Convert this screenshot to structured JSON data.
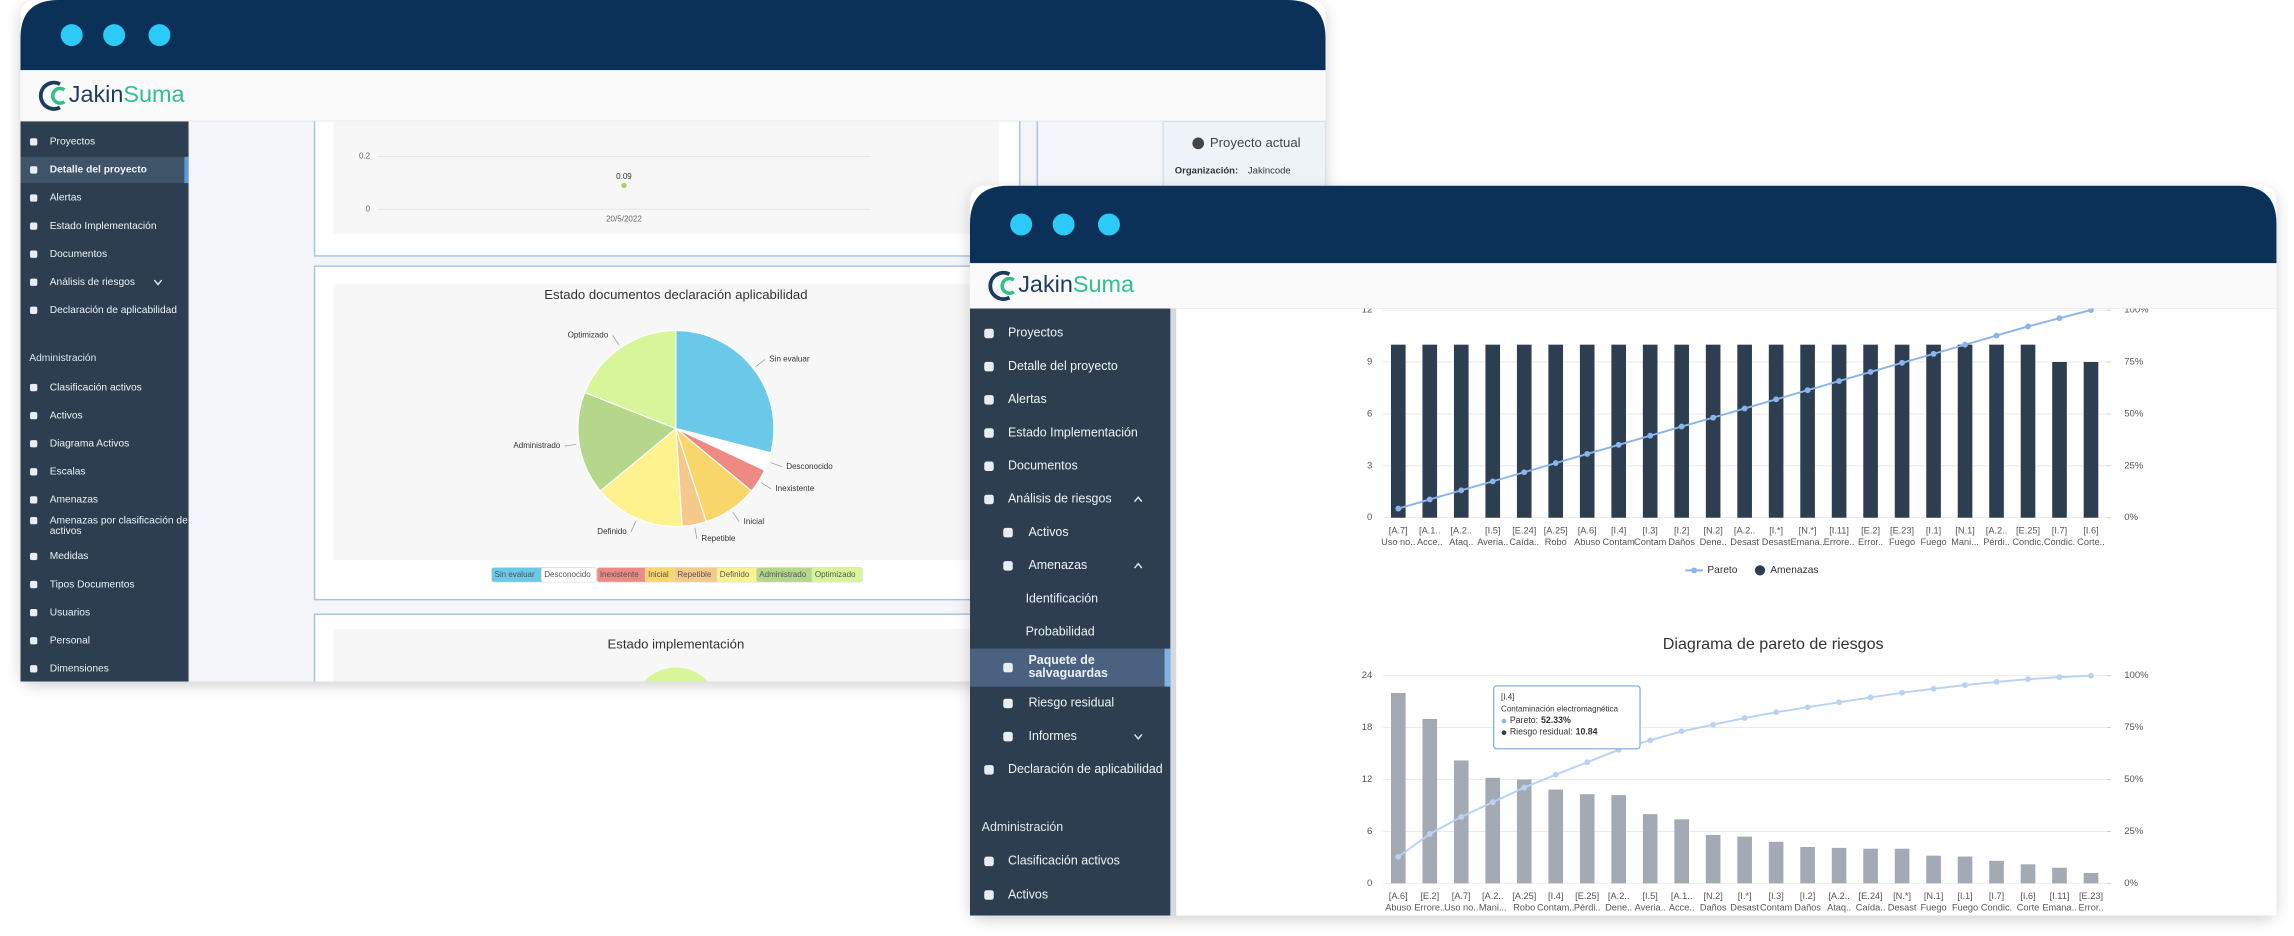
{
  "left_window": {
    "logo": {
      "part1": "Jakin",
      "part2": "Suma"
    },
    "sidebar": {
      "items": [
        {
          "label": "Proyectos"
        },
        {
          "label": "Detalle del proyecto",
          "active": true
        },
        {
          "label": "Alertas"
        },
        {
          "label": "Estado Implementación"
        },
        {
          "label": "Documentos"
        },
        {
          "label": "Análisis de riesgos",
          "caret": "down"
        },
        {
          "label": "Declaración de aplicabilidad"
        }
      ],
      "section": "Administración",
      "admin_items": [
        {
          "label": "Clasificación activos"
        },
        {
          "label": "Activos"
        },
        {
          "label": "Diagrama Activos"
        },
        {
          "label": "Escalas"
        },
        {
          "label": "Amenazas"
        },
        {
          "label": "Amenazas por clasificación de activos",
          "wrap": true
        },
        {
          "label": "Medidas"
        },
        {
          "label": "Tipos Documentos"
        },
        {
          "label": "Usuarios"
        },
        {
          "label": "Personal"
        },
        {
          "label": "Dimensiones"
        }
      ]
    },
    "line_chart": {
      "type": "line",
      "x": [
        "20/5/2022"
      ],
      "values": [
        0.09
      ],
      "value_labels": [
        "0.09"
      ],
      "color": "#9ed36a",
      "ylim": [
        0,
        0.2
      ],
      "yticks": [
        0,
        0.2
      ],
      "grid": true
    },
    "pie_chart": {
      "type": "pie",
      "title": "Estado documentos declaración aplicabilidad",
      "categories": [
        "Sin evaluar",
        "Desconocido",
        "Inexistente",
        "Inicial",
        "Repetible",
        "Definido",
        "Administrado",
        "Optimizado"
      ],
      "values": [
        29,
        3,
        4,
        9,
        4,
        15,
        17,
        19
      ],
      "colors": [
        "#6ac8e8",
        "#ffffff",
        "#ee8a83",
        "#f8d66a",
        "#f4c98a",
        "#fdf28e",
        "#b5d78b",
        "#d8f59a"
      ]
    },
    "current_project": {
      "title": "Proyecto actual",
      "org_label": "Organización:",
      "org_value": "Jakincode"
    },
    "implementation_panel": {
      "title": "Estado implementación"
    }
  },
  "right_window": {
    "logo": {
      "part1": "Jakin",
      "part2": "Suma"
    },
    "sidebar": {
      "items": [
        {
          "label": "Proyectos",
          "level": 0
        },
        {
          "label": "Detalle del proyecto",
          "level": 0
        },
        {
          "label": "Alertas",
          "level": 0
        },
        {
          "label": "Estado Implementación",
          "level": 0
        },
        {
          "label": "Documentos",
          "level": 0
        },
        {
          "label": "Análisis de riesgos",
          "level": 0,
          "caret": "up"
        },
        {
          "label": "Activos",
          "level": 1
        },
        {
          "label": "Amenazas",
          "level": 1,
          "caret": "up"
        },
        {
          "label": "Identificación",
          "level": 2
        },
        {
          "label": "Probabilidad",
          "level": 2
        },
        {
          "label": "Paquete de salvaguardas",
          "level": 1,
          "active": true,
          "wrap": true
        },
        {
          "label": "Riesgo residual",
          "level": 1
        },
        {
          "label": "Informes",
          "level": 1,
          "caret": "down"
        },
        {
          "label": "Declaración de aplicabilidad",
          "level": 0
        }
      ],
      "section": "Administración",
      "admin_items": [
        {
          "label": "Clasificación activos",
          "level": 0
        },
        {
          "label": "Activos",
          "level": 0
        }
      ]
    },
    "threats_chart": {
      "type": "pareto",
      "categories": [
        "[A.7]",
        "[A.1..",
        "[A.2..",
        "[I.5]",
        "[E.24]",
        "[A.25]",
        "[A.6]",
        "[I.4]",
        "[I.3]",
        "[I.2]",
        "[N.2]",
        "[A.2..",
        "[I.*]",
        "[N.*]",
        "[I.11]",
        "[E.2]",
        "[E.23]",
        "[I.1]",
        "[N.1]",
        "[A.2..",
        "[E.25]",
        "[I.7]",
        "[I.6]"
      ],
      "category_names": [
        "Uso no..",
        "Acce..",
        "Ataq..",
        "Averia..",
        "Caída..",
        "Robo",
        "Abuso",
        "Contam",
        "Contam",
        "Daños",
        "Dene..",
        "Desast",
        "Desast",
        "Emana..",
        "Errore..",
        "Error..",
        "Fuego",
        "Fuego",
        "Mani...",
        "Pérdi..",
        "Condic.",
        "Condic.",
        "Corte.."
      ],
      "bars": {
        "name": "Amenazas",
        "color": "#2d3e50",
        "values": [
          10,
          10,
          10,
          10,
          10,
          10,
          10,
          10,
          10,
          10,
          10,
          10,
          10,
          10,
          10,
          10,
          10,
          10,
          10,
          10,
          10,
          9,
          9
        ]
      },
      "pareto": {
        "name": "Pareto",
        "color": "#8ab4ea",
        "axis": "y2",
        "values": [
          4.4,
          8.8,
          13.2,
          17.5,
          21.9,
          26.3,
          30.7,
          35.1,
          39.5,
          43.9,
          48.2,
          52.6,
          57.0,
          61.4,
          65.8,
          70.2,
          74.6,
          78.9,
          83.3,
          87.7,
          92.1,
          96.1,
          100
        ]
      },
      "ylim": [
        0,
        12
      ],
      "yticks": [
        0,
        3,
        6,
        9,
        12
      ],
      "y2lim": [
        0,
        100
      ],
      "y2ticks": [
        {
          "value": 0,
          "label": "0%"
        },
        {
          "value": 25,
          "label": "25%"
        },
        {
          "value": 50,
          "label": "50%"
        },
        {
          "value": 75,
          "label": "75%"
        },
        {
          "value": 100,
          "label": "100%"
        }
      ],
      "grid": true
    },
    "risk_chart": {
      "type": "pareto",
      "title": "Diagrama de pareto de riesgos",
      "categories": [
        "[A.6]",
        "[E.2]",
        "[A.7]",
        "[A.2..",
        "[A.25]",
        "[I.4]",
        "[E.25]",
        "[A.2..",
        "[I.5]",
        "[A.1..",
        "[N.2]",
        "[I.*]",
        "[I.3]",
        "[I.2]",
        "[A.2..",
        "[E.24]",
        "[N.*]",
        "[N.1]",
        "[I.1]",
        "[I.7]",
        "[I.6]",
        "[I.11]",
        "[E.23]"
      ],
      "category_names": [
        "Abuso",
        "Errore..",
        "Uso no..",
        "Mani...",
        "Robo",
        "Contam..",
        "Pérdi..",
        "Dene..",
        "Averia..",
        "Acce..",
        "Daños",
        "Desast",
        "Contam",
        "Daños",
        "Ataq..",
        "Caída..",
        "Desast",
        "Fuego",
        "Fuego",
        "Condic.",
        "Corte",
        "Emana..",
        "Error.."
      ],
      "bars": {
        "color": "#a3aab3",
        "values": [
          22,
          19,
          14.2,
          12.2,
          12,
          10.84,
          10.3,
          10.2,
          8,
          7.4,
          5.6,
          5.4,
          4.8,
          4.2,
          4.1,
          4,
          4,
          3.2,
          3.1,
          2.6,
          2.2,
          1.8,
          1.2
        ]
      },
      "pareto": {
        "color": "#b9d1f2",
        "axis": "y2",
        "values": [
          12.8,
          23.8,
          32.0,
          39.1,
          46.1,
          52.33,
          58.3,
          64.3,
          68.9,
          73.2,
          76.4,
          79.6,
          82.4,
          84.8,
          87.2,
          89.5,
          91.8,
          93.7,
          95.5,
          97.0,
          98.3,
          99.3,
          100
        ]
      },
      "ylim": [
        0,
        24
      ],
      "yticks": [
        0,
        6,
        12,
        18,
        24
      ],
      "y2lim": [
        0,
        100
      ],
      "y2ticks": [
        {
          "value": 0,
          "label": "0%"
        },
        {
          "value": 25,
          "label": "25%"
        },
        {
          "value": 50,
          "label": "50%"
        },
        {
          "value": 75,
          "label": "75%"
        },
        {
          "value": 100,
          "label": "100%"
        }
      ],
      "grid": true
    },
    "tooltip": {
      "title": "[I.4]",
      "subtitle": "Contaminación electromagnética",
      "lines": [
        {
          "label": "Pareto:",
          "value": "52.33%",
          "color": "#8ab4ea"
        },
        {
          "label": "Riesgo residual:",
          "value": "10.84",
          "color": "#2d3e50"
        }
      ]
    }
  }
}
